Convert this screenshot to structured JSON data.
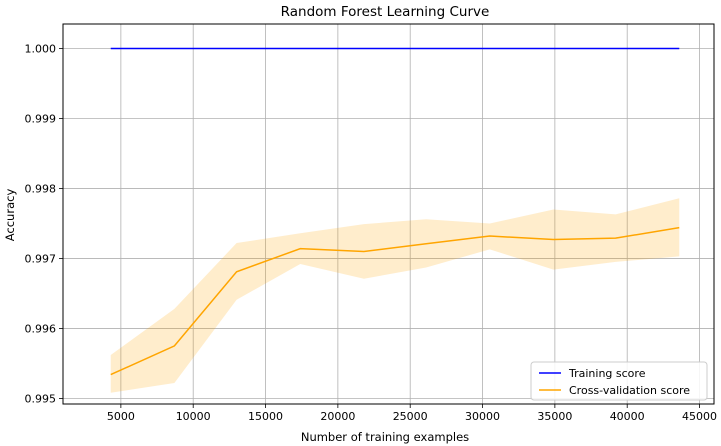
{
  "chart_data": {
    "type": "line",
    "title": "Random Forest Learning Curve",
    "xlabel": "Number of training examples",
    "ylabel": "Accuracy",
    "xlim": [
      1000,
      46000
    ],
    "ylim": [
      0.99492,
      1.00035
    ],
    "xticks": [
      5000,
      10000,
      15000,
      20000,
      25000,
      30000,
      35000,
      40000,
      45000
    ],
    "yticks": [
      0.995,
      0.996,
      0.997,
      0.998,
      0.999,
      1.0
    ],
    "ytick_labels": [
      "0.995",
      "0.996",
      "0.997",
      "0.998",
      "0.999",
      "1.000"
    ],
    "grid": true,
    "legend_position": "bottom-right",
    "x": [
      4300,
      8700,
      13000,
      17400,
      21800,
      26100,
      30500,
      34900,
      39200,
      43600
    ],
    "series": [
      {
        "name": "Training score",
        "color": "#0000ff",
        "values": [
          1.0,
          1.0,
          1.0,
          1.0,
          1.0,
          1.0,
          1.0,
          1.0,
          1.0,
          1.0
        ],
        "band_lower": [
          1.0,
          1.0,
          1.0,
          1.0,
          1.0,
          1.0,
          1.0,
          1.0,
          1.0,
          1.0
        ],
        "band_upper": [
          1.0,
          1.0,
          1.0,
          1.0,
          1.0,
          1.0,
          1.0,
          1.0,
          1.0,
          1.0
        ]
      },
      {
        "name": "Cross-validation score",
        "color": "#ffa500",
        "band_color": "#ffa500",
        "values": [
          0.99534,
          0.99575,
          0.99681,
          0.99714,
          0.9971,
          0.99721,
          0.99732,
          0.99727,
          0.99729,
          0.99744
        ],
        "band_lower": [
          0.99508,
          0.99522,
          0.99641,
          0.99692,
          0.99671,
          0.99687,
          0.99713,
          0.99684,
          0.99695,
          0.99703
        ],
        "band_upper": [
          0.99562,
          0.99628,
          0.99722,
          0.99736,
          0.99749,
          0.99756,
          0.9975,
          0.9977,
          0.99763,
          0.99786
        ]
      }
    ]
  }
}
